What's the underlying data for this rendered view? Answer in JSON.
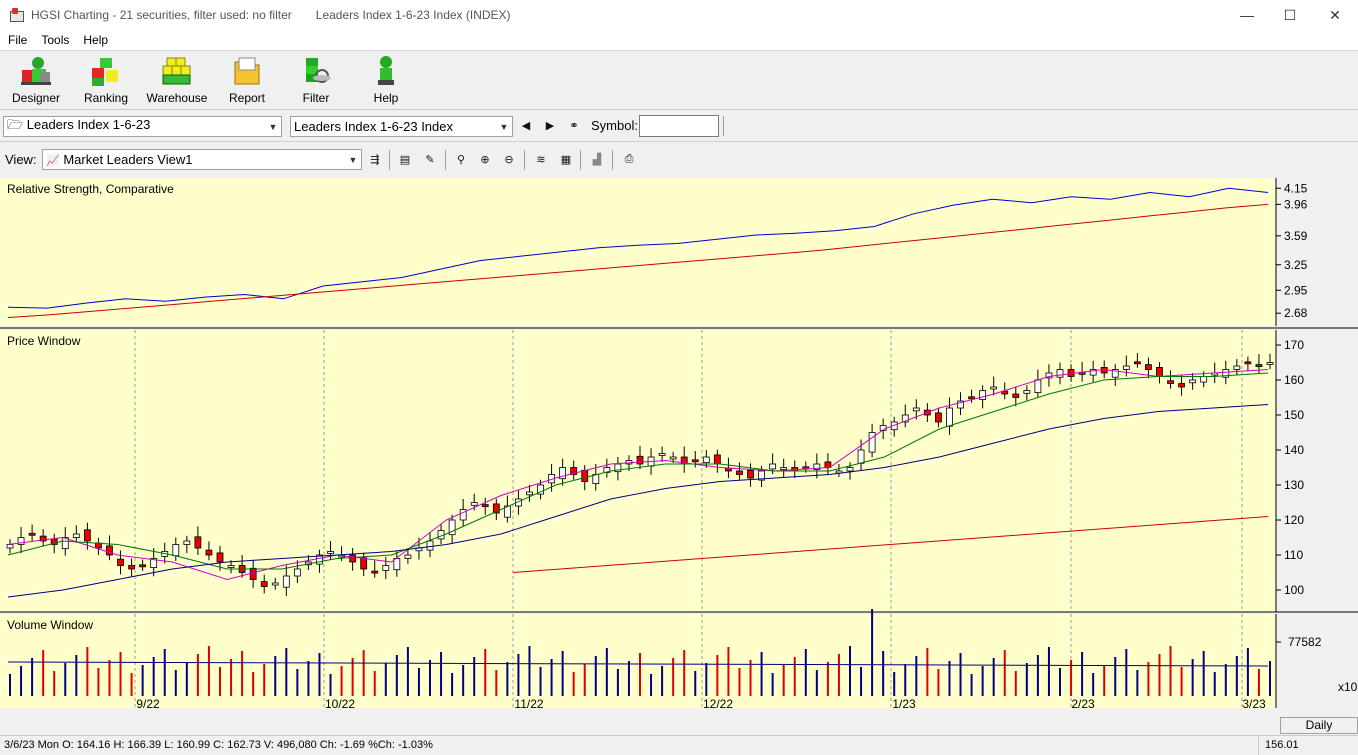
{
  "window": {
    "app_title": "HGSI Charting - 21 securities, filter used: no filter",
    "doc_title": "Leaders Index 1-6-23 Index (INDEX)",
    "minimize": "—",
    "maximize": "☐",
    "close": "✕"
  },
  "menu": [
    "File",
    "Tools",
    "Help"
  ],
  "toolbar": {
    "buttons": [
      {
        "label": "Designer",
        "icon": "designer-icon"
      },
      {
        "label": "Ranking",
        "icon": "ranking-icon"
      },
      {
        "label": "Warehouse",
        "icon": "warehouse-icon"
      },
      {
        "label": "Report",
        "icon": "report-icon"
      },
      {
        "label": "Filter",
        "icon": "filter-icon"
      },
      {
        "label": "Help",
        "icon": "help-icon"
      }
    ]
  },
  "selectors": {
    "list_value": "Leaders Index 1-6-23",
    "security_value": "Leaders Index 1-6-23 Index",
    "symbol_label": "Symbol:",
    "symbol_value": ""
  },
  "viewbar": {
    "label": "View:",
    "view_value": "Market Leaders View1"
  },
  "chart_data": [
    {
      "type": "line",
      "title": "Relative Strength, Comparative",
      "y_ticks": [
        4.15,
        3.96,
        3.59,
        3.25,
        2.95,
        2.68
      ],
      "ylim": [
        2.6,
        4.2
      ],
      "series": [
        {
          "color": "#0000cc",
          "values": [
            2.75,
            2.74,
            2.8,
            2.85,
            2.82,
            2.87,
            2.9,
            2.85,
            3.0,
            3.05,
            3.1,
            3.2,
            3.3,
            3.35,
            3.4,
            3.45,
            3.48,
            3.5,
            3.55,
            3.6,
            3.62,
            3.65,
            3.7,
            3.85,
            3.95,
            4.02,
            3.98,
            4.05,
            4.02,
            4.1,
            4.05,
            4.15,
            4.1
          ]
        },
        {
          "color": "#cc0000",
          "values": [
            2.63,
            2.66,
            2.7,
            2.74,
            2.78,
            2.82,
            2.86,
            2.9,
            2.94,
            2.98,
            3.02,
            3.06,
            3.1,
            3.14,
            3.18,
            3.22,
            3.26,
            3.3,
            3.34,
            3.38,
            3.42,
            3.47,
            3.52,
            3.57,
            3.62,
            3.67,
            3.72,
            3.77,
            3.82,
            3.87,
            3.92,
            3.96
          ]
        }
      ]
    },
    {
      "type": "candlestick",
      "title": "Price Window",
      "y_ticks": [
        170,
        160,
        150,
        140,
        130,
        120,
        110,
        100
      ],
      "ylim": [
        96,
        172
      ],
      "closes": [
        113,
        115,
        116,
        114,
        113,
        115,
        116,
        114,
        112,
        110,
        107,
        106,
        107,
        109,
        111,
        113,
        114,
        112,
        110,
        108,
        107,
        105,
        103,
        101,
        102,
        104,
        106,
        108,
        110,
        111,
        110,
        108,
        106,
        105,
        107,
        109,
        110,
        112,
        114,
        117,
        120,
        123,
        125,
        124,
        122,
        124,
        126,
        128,
        130,
        133,
        135,
        133,
        131,
        133,
        135,
        136,
        137,
        136,
        138,
        139,
        138,
        136,
        137,
        138,
        136,
        134,
        133,
        132,
        134,
        136,
        135,
        134,
        135,
        136,
        135,
        134,
        135,
        140,
        145,
        147,
        148,
        150,
        152,
        150,
        148,
        152,
        154,
        155,
        157,
        158,
        156,
        155,
        157,
        160,
        162,
        163,
        161,
        162,
        163,
        162,
        163,
        164,
        165,
        163,
        161,
        159,
        158,
        160,
        161,
        162,
        163,
        164,
        165,
        164,
        165
      ],
      "series": [
        {
          "color": "#cc00cc",
          "values": [
            113,
            115,
            110,
            108,
            103,
            107,
            110,
            108,
            120,
            127,
            132,
            136,
            137,
            135,
            134,
            135,
            146,
            152,
            156,
            161,
            163,
            161,
            162,
            163
          ]
        },
        {
          "color": "#007700",
          "values": [
            110,
            114,
            113,
            110,
            106,
            106,
            109,
            110,
            116,
            123,
            130,
            134,
            136,
            136,
            134,
            134,
            138,
            146,
            151,
            156,
            160,
            161,
            161,
            162
          ]
        },
        {
          "color": "#000080",
          "values": [
            98,
            100,
            103,
            106,
            108,
            109,
            110,
            111,
            113,
            116,
            121,
            126,
            129,
            131,
            132,
            133,
            135,
            138,
            142,
            146,
            149,
            151,
            152,
            153
          ]
        },
        {
          "color": "#cc0000",
          "values": [
            105,
            107,
            109,
            111,
            113,
            115,
            117,
            119,
            121
          ]
        }
      ]
    },
    {
      "type": "bar",
      "title": "Volume Window",
      "y_ticks": [
        77582
      ],
      "scale_label": "x10",
      "x_ticks": [
        "9/22",
        "10/22",
        "11/22",
        "12/22",
        "1/23",
        "2/23",
        "3/23"
      ]
    }
  ],
  "status": {
    "ohlc": "3/6/23 Mon O: 164.16 H: 166.39 L: 160.99 C: 162.73 V: 496,080 Ch: -1.69 %Ch: -1.03%",
    "right_value": "156.01",
    "period_button": "Daily"
  },
  "colors": {
    "chart_bg": "#ffffcc",
    "up_candle": "#ffffff",
    "down_candle": "#ee0000",
    "volume_up": "#000080",
    "volume_down": "#dd0000"
  }
}
